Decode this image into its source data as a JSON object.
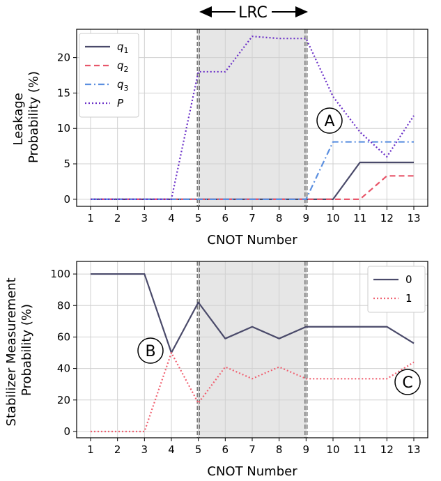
{
  "banner": {
    "label": "LRC"
  },
  "chart_data": [
    {
      "type": "line",
      "xlabel": "CNOT Number",
      "ylabel_lines": [
        "Leakage",
        "Probability (%)"
      ],
      "x": [
        1,
        2,
        3,
        4,
        5,
        6,
        7,
        8,
        9,
        10,
        11,
        12,
        13
      ],
      "xlim": [
        1,
        13
      ],
      "ylim": [
        -1,
        24
      ],
      "yticks": [
        0,
        5,
        10,
        15,
        20
      ],
      "grid": true,
      "legend_position": "top-left",
      "shaded_region": [
        5,
        9
      ],
      "annotation": "A",
      "series": [
        {
          "name": "q",
          "sub": "1",
          "color": "#4a4a6a",
          "dash": "solid",
          "values": [
            0,
            0,
            0,
            0,
            0,
            0,
            0,
            0,
            0,
            0,
            5.2,
            5.2,
            5.2
          ]
        },
        {
          "name": "q",
          "sub": "2",
          "color": "#e8566a",
          "dash": "dashed",
          "values": [
            0,
            0,
            0,
            0,
            0,
            0,
            0,
            0,
            0,
            0,
            0,
            3.3,
            3.3
          ]
        },
        {
          "name": "q",
          "sub": "3",
          "color": "#5b8fe0",
          "dash": "dashdot",
          "values": [
            0,
            0,
            0,
            0,
            0,
            0,
            0,
            0,
            0,
            8.1,
            8.1,
            8.1,
            8.1
          ]
        },
        {
          "name": "P",
          "sub": "",
          "color": "#6a2fc8",
          "dash": "dotted",
          "values": [
            0,
            0,
            0,
            0,
            18,
            18,
            23,
            22.7,
            22.7,
            14.5,
            9.5,
            6,
            11.8
          ]
        }
      ]
    },
    {
      "type": "line",
      "xlabel": "CNOT Number",
      "ylabel_lines": [
        "Stabilizer Measurement",
        "Probability (%)"
      ],
      "x": [
        1,
        2,
        3,
        4,
        5,
        6,
        7,
        8,
        9,
        10,
        11,
        12,
        13
      ],
      "xlim": [
        1,
        13
      ],
      "ylim": [
        -4,
        108
      ],
      "yticks": [
        0,
        20,
        40,
        60,
        80,
        100
      ],
      "grid": true,
      "legend_position": "top-right",
      "shaded_region": [
        5,
        9
      ],
      "annotations": [
        "B",
        "C"
      ],
      "series": [
        {
          "name": "0",
          "sub": "",
          "color": "#4a4a6a",
          "dash": "solid",
          "values": [
            100,
            100,
            100,
            50,
            82,
            59,
            66.5,
            59,
            66.5,
            66.5,
            66.5,
            66.5,
            56
          ]
        },
        {
          "name": "1",
          "sub": "",
          "color": "#f06070",
          "dash": "dotted",
          "values": [
            0,
            0,
            0,
            50,
            18,
            41,
            33.5,
            41,
            33.5,
            33.5,
            33.5,
            33.5,
            44
          ]
        }
      ]
    }
  ]
}
